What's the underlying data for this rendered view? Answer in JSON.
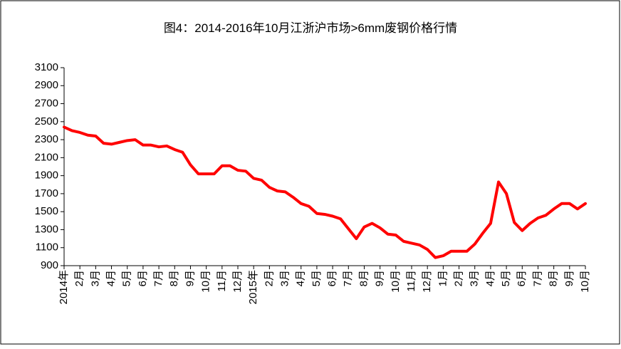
{
  "chart_data": {
    "type": "line",
    "title": "图4：2014-2016年10月江浙沪市场>6mm废钢价格行情",
    "categories": [
      "2014年",
      null,
      "2月",
      null,
      "3月",
      null,
      "4月",
      null,
      "5月",
      null,
      "6月",
      null,
      "7月",
      null,
      "8月",
      null,
      "9月",
      null,
      "10月",
      null,
      "11月",
      null,
      "12月",
      null,
      "2015年",
      null,
      "2月",
      null,
      "3月",
      null,
      "4月",
      null,
      "5月",
      null,
      "6月",
      null,
      "7月",
      null,
      "8月",
      null,
      "9月",
      null,
      "10月",
      null,
      "11月",
      null,
      "12月",
      null,
      "1月",
      null,
      "2月",
      null,
      "3月",
      null,
      "4月",
      null,
      "5月",
      null,
      "6月",
      null,
      "7月",
      null,
      "8月",
      null,
      "9月",
      null,
      "10月"
    ],
    "series": [
      {
        "color": "#ff0000",
        "values": [
          2440,
          2400,
          2380,
          2350,
          2340,
          2260,
          2250,
          2270,
          2290,
          2300,
          2240,
          2240,
          2220,
          2230,
          2190,
          2160,
          2020,
          1920,
          1920,
          1920,
          2010,
          2010,
          1960,
          1950,
          1870,
          1850,
          1770,
          1730,
          1720,
          1660,
          1590,
          1560,
          1480,
          1470,
          1450,
          1420,
          1310,
          1200,
          1330,
          1370,
          1320,
          1250,
          1240,
          1170,
          1150,
          1130,
          1080,
          990,
          1010,
          1060,
          1060,
          1060,
          1140,
          1260,
          1370,
          1830,
          1700,
          1380,
          1290,
          1370,
          1430,
          1460,
          1530,
          1590,
          1590,
          1530,
          1590
        ]
      }
    ],
    "ylim": [
      900,
      3100
    ],
    "yticks": [
      900,
      1100,
      1300,
      1500,
      1700,
      1900,
      2100,
      2300,
      2500,
      2700,
      2900,
      3100
    ]
  }
}
